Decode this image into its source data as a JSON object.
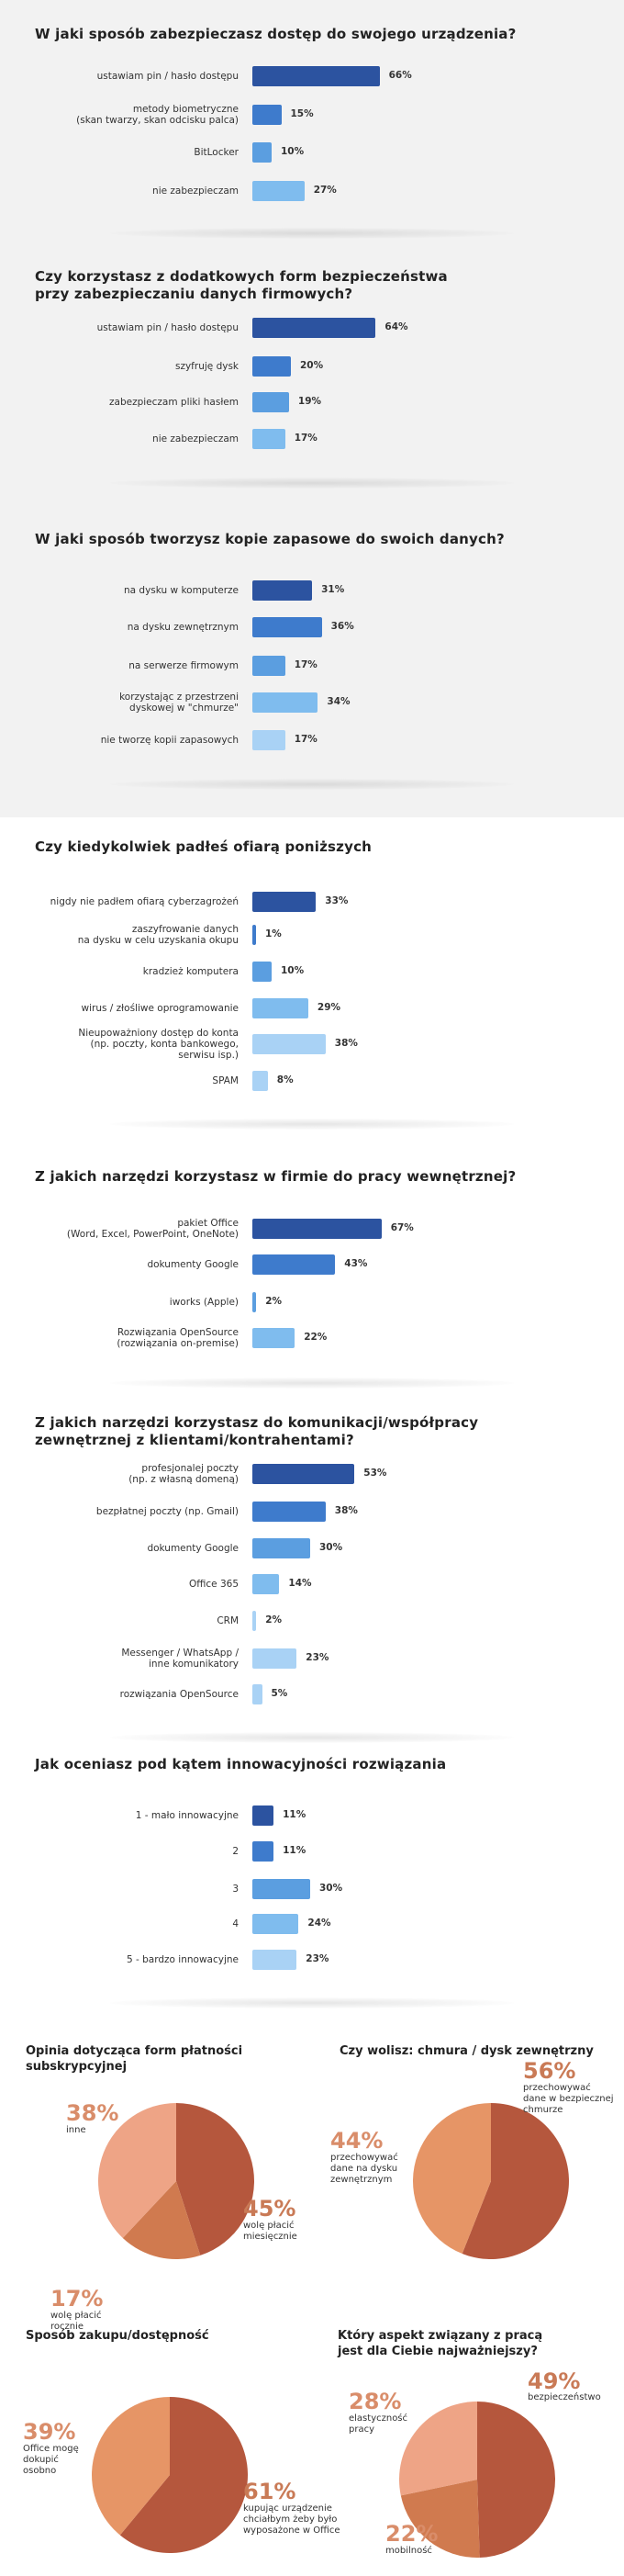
{
  "colors": {
    "dark": "#2c53a0",
    "mid": "#3e7bcc",
    "light": "#5b9ee0",
    "pale": "#7fbcee",
    "vpale": "#a9d2f5",
    "pie_dark": "#b5573d",
    "pie_mid": "#d07a4f",
    "pie_light": "#e69566",
    "pie_pale": "#eea486",
    "pie_text_a": "#c97a56",
    "pie_text_b": "#d98d6a"
  },
  "chart_data": [
    {
      "type": "bar",
      "title": "W jaki sposób zabezpieczasz dostęp do swojego urządzenia?",
      "categories": [
        "ustawiam pin / hasło dostępu",
        "metody biometryczne\n(skan twarzy, skan odcisku palca)",
        "BitLocker",
        "nie zabezpieczam"
      ],
      "values": [
        66,
        15,
        10,
        27
      ],
      "labels": [
        "66%",
        "15%",
        "10%",
        "27%"
      ]
    },
    {
      "type": "bar",
      "title": "Czy korzystasz z dodatkowych form bezpieczeństwa\nprzy zabezpieczaniu danych firmowych?",
      "categories": [
        "ustawiam pin / hasło dostępu",
        "szyfruję dysk",
        "zabezpieczam pliki hasłem",
        "nie zabezpieczam"
      ],
      "values": [
        64,
        20,
        19,
        17
      ],
      "labels": [
        "64%",
        "20%",
        "19%",
        "17%"
      ]
    },
    {
      "type": "bar",
      "title": "W jaki sposób tworzysz kopie zapasowe do swoich danych?",
      "categories": [
        "na dysku w komputerze",
        "na dysku zewnętrznym",
        "na serwerze firmowym",
        "korzystając z przestrzeni\ndyskowej w \"chmurze\"",
        "nie tworzę kopii zapasowych"
      ],
      "values": [
        31,
        36,
        17,
        34,
        17
      ],
      "labels": [
        "31%",
        "36%",
        "17%",
        "34%",
        "17%"
      ]
    },
    {
      "type": "bar",
      "title": "Czy kiedykolwiek padłeś ofiarą poniższych",
      "categories": [
        "nigdy nie padłem ofiarą cyberzagrożeń",
        "zaszyfrowanie danych\nna dysku w celu uzyskania okupu",
        "kradzież komputera",
        "wirus / złośliwe oprogramowanie",
        "Nieupoważniony dostęp do konta\n(np. poczty, konta bankowego,\nserwisu isp.)",
        "SPAM"
      ],
      "values": [
        33,
        1,
        10,
        29,
        38,
        8
      ],
      "labels": [
        "33%",
        "1%",
        "10%",
        "29%",
        "38%",
        "8%"
      ]
    },
    {
      "type": "bar",
      "title": "Z jakich narzędzi korzystasz w firmie do pracy wewnętrznej?",
      "categories": [
        "pakiet Office\n(Word, Excel, PowerPoint, OneNote)",
        "dokumenty Google",
        "iworks (Apple)",
        "Rozwiązania OpenSource\n(rozwiązania on-premise)"
      ],
      "values": [
        67,
        43,
        2,
        22
      ],
      "labels": [
        "67%",
        "43%",
        "2%",
        "22%"
      ]
    },
    {
      "type": "bar",
      "title": "Z jakich narzędzi korzystasz do komunikacji/współpracy\nzewnętrznej z klientami/kontrahentami?",
      "categories": [
        "profesjonalej poczty\n(np. z własną domeną)",
        "bezpłatnej poczty (np. Gmail)",
        "dokumenty Google",
        "Office 365",
        "CRM",
        "Messenger / WhatsApp /\ninne komunikatory",
        "rozwiązania OpenSource"
      ],
      "values": [
        53,
        38,
        30,
        14,
        2,
        23,
        5
      ],
      "labels": [
        "53%",
        "38%",
        "30%",
        "14%",
        "2%",
        "23%",
        "5%"
      ]
    },
    {
      "type": "bar",
      "title": "Jak oceniasz pod kątem innowacyjności rozwiązania",
      "categories": [
        "1 - mało innowacyjne",
        "2",
        "3",
        "4",
        "5 - bardzo innowacyjne"
      ],
      "values": [
        11,
        11,
        30,
        24,
        23
      ],
      "labels": [
        "11%",
        "11%",
        "30%",
        "24%",
        "23%"
      ]
    },
    {
      "type": "pie",
      "title": "Opinia dotycząca form płatności\nsubskrypcyjnej",
      "slices": [
        {
          "pct": "45%",
          "label": "wolę płacić\nmiesięcznie",
          "value": 45
        },
        {
          "pct": "17%",
          "label": "wolę płacić\nrocznie",
          "value": 17
        },
        {
          "pct": "38%",
          "label": "inne",
          "value": 38
        }
      ]
    },
    {
      "type": "pie",
      "title": "Czy wolisz: chmura / dysk zewnętrzny",
      "slices": [
        {
          "pct": "56%",
          "label": "przechowywać\ndane w bezpiecznej\nchmurze",
          "value": 56
        },
        {
          "pct": "44%",
          "label": "przechowywać\ndane na dysku\nzewnętrznym",
          "value": 44
        }
      ]
    },
    {
      "type": "pie",
      "title": "Sposób zakupu/dostępność",
      "slices": [
        {
          "pct": "61%",
          "label": "kupując urządzenie\nchciałbym żeby było\nwyposażone w Office",
          "value": 61
        },
        {
          "pct": "39%",
          "label": "Office mogę\ndokupić\nosobno",
          "value": 39
        }
      ]
    },
    {
      "type": "pie",
      "title": "Który aspekt związany z pracą\njest dla Ciebie najważniejszy?",
      "slices": [
        {
          "pct": "49%",
          "label": "bezpieczeństwo",
          "value": 49
        },
        {
          "pct": "22%",
          "label": "mobilność",
          "value": 22
        },
        {
          "pct": "28%",
          "label": "elastyczność\npracy",
          "value": 28
        }
      ]
    }
  ]
}
